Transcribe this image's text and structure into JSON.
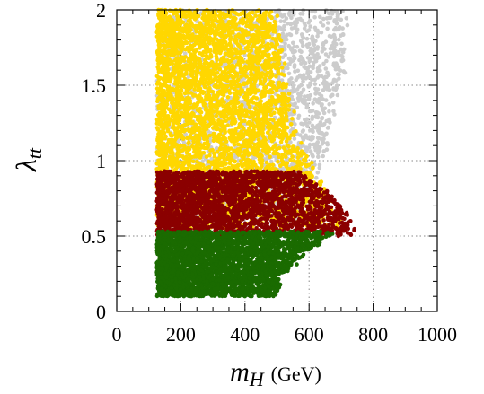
{
  "chart_data": {
    "type": "scatter",
    "title": "",
    "xlabel_main": "m",
    "xlabel_sub": "H",
    "xlabel_unit": "(GeV)",
    "ylabel_main": "λ",
    "ylabel_sub": "tt",
    "xlim": [
      0,
      1000
    ],
    "ylim": [
      0,
      2
    ],
    "xticks": [
      0,
      200,
      400,
      600,
      800,
      1000
    ],
    "yticks": [
      0,
      0.5,
      1,
      1.5,
      2
    ],
    "xtick_labels": [
      "0",
      "200",
      "400",
      "600",
      "800",
      "1000"
    ],
    "ytick_labels": [
      "0",
      "0.5",
      "1",
      "1.5",
      "2"
    ],
    "grid": true,
    "grid_style": "dotted",
    "legend": "none",
    "series": [
      {
        "color": "#cccccc",
        "region": {
          "y_min": 0.6,
          "y_max": 2.0,
          "x_min": 125,
          "x_max_by_y": [
            [
              0.6,
              580
            ],
            [
              1.0,
              640
            ],
            [
              1.5,
              700
            ],
            [
              2.0,
              720
            ]
          ]
        }
      },
      {
        "color": "#ffd700",
        "region": {
          "y_min": 0.55,
          "y_max": 2.0,
          "x_min": 125,
          "x_max_by_y": [
            [
              0.55,
              720
            ],
            [
              0.9,
              620
            ],
            [
              1.2,
              560
            ],
            [
              1.6,
              520
            ],
            [
              2.0,
              490
            ]
          ]
        }
      },
      {
        "color": "#8b0000",
        "region": {
          "y_min": 0.5,
          "y_max": 0.93,
          "x_min": 125,
          "x_max_by_y": [
            [
              0.5,
              740
            ],
            [
              0.65,
              720
            ],
            [
              0.8,
              650
            ],
            [
              0.93,
              560
            ]
          ]
        }
      },
      {
        "color": "#1a6b00",
        "region": {
          "y_min": 0.1,
          "y_max": 0.53,
          "x_min": 125,
          "x_max_by_y": [
            [
              0.1,
              490
            ],
            [
              0.25,
              520
            ],
            [
              0.4,
              600
            ],
            [
              0.53,
              680
            ]
          ]
        }
      }
    ]
  }
}
